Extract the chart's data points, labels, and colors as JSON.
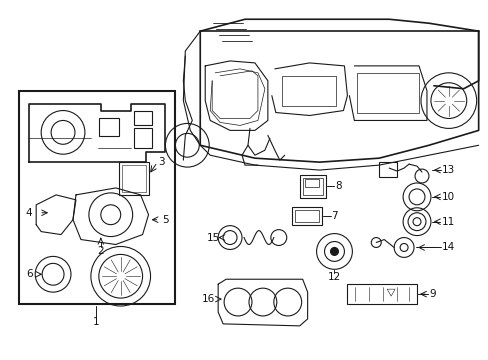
{
  "background": "#ffffff",
  "line_color": "#1a1a1a",
  "text_color": "#111111",
  "fig_width": 4.89,
  "fig_height": 3.6,
  "dpi": 100
}
